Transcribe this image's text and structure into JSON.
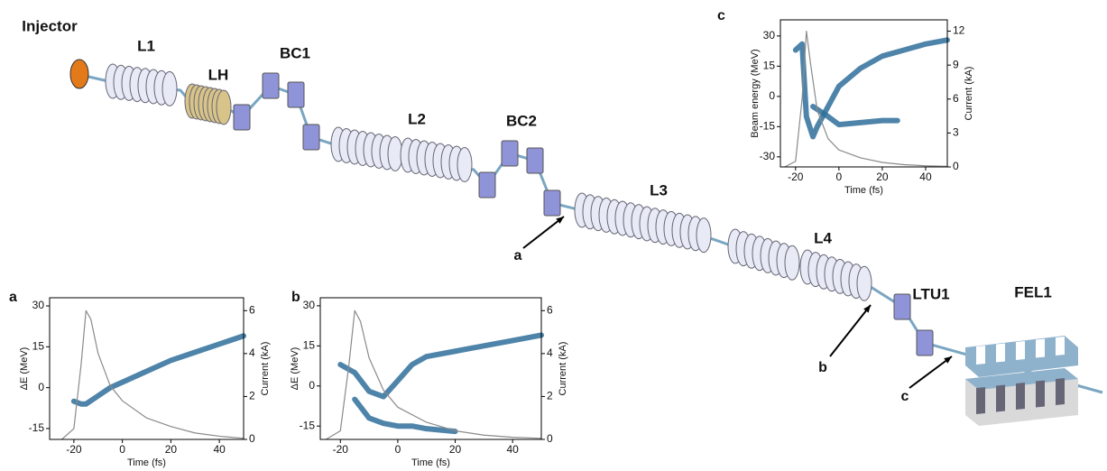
{
  "diagram": {
    "components": [
      "Injector",
      "L1",
      "LH",
      "BC1",
      "L2",
      "BC2",
      "L3",
      "L4",
      "LTU1",
      "FEL1"
    ],
    "arrows": [
      "a",
      "b",
      "c"
    ]
  },
  "chart_data": [
    {
      "type": "line",
      "panel": "a",
      "xlabel": "Time (fs)",
      "ylabel": "ΔE (MeV)",
      "y2label": "Current (kA)",
      "xlim": [
        -30,
        50
      ],
      "xticks": [
        -20,
        0,
        20,
        40
      ],
      "ylim": [
        -19,
        33
      ],
      "yticks": [
        -15,
        0,
        15,
        30
      ],
      "y2lim": [
        0,
        6.6
      ],
      "y2ticks": [
        0,
        2,
        4,
        6
      ],
      "series": [
        {
          "color": "#2f6e9a",
          "x": [
            -20,
            -17,
            -15,
            -10,
            -5,
            0,
            10,
            20,
            30,
            40,
            50
          ],
          "values": [
            -5,
            -6,
            -6,
            -3,
            0,
            2,
            6,
            10,
            13,
            16,
            19
          ]
        },
        {
          "color": "#8a8a8a",
          "axis": "y2",
          "x": [
            -25,
            -20,
            -17,
            -15,
            -13,
            -10,
            -5,
            0,
            10,
            20,
            30,
            40,
            50
          ],
          "values": [
            0,
            0.5,
            3.5,
            6,
            5.6,
            4,
            2.5,
            1.8,
            1,
            0.6,
            0.3,
            0.15,
            0.05
          ]
        }
      ]
    },
    {
      "type": "line",
      "panel": "b",
      "xlabel": "Time (fs)",
      "ylabel": "ΔE (MeV)",
      "y2label": "Current (kA)",
      "xlim": [
        -27,
        50
      ],
      "xticks": [
        -20,
        0,
        20,
        40
      ],
      "ylim": [
        -20,
        33
      ],
      "yticks": [
        -15,
        0,
        15,
        30
      ],
      "y2lim": [
        0,
        6.6
      ],
      "y2ticks": [
        0,
        2,
        4,
        6
      ],
      "series": [
        {
          "color": "#2f6e9a",
          "x": [
            -20,
            -15,
            -10,
            -5,
            0,
            5,
            10,
            20,
            30,
            40,
            50
          ],
          "values": [
            8,
            5,
            -2,
            -4,
            2,
            8,
            11,
            13,
            15,
            17,
            19
          ]
        },
        {
          "color": "#2f6e9a",
          "x": [
            -15,
            -10,
            -5,
            0,
            5,
            10,
            20
          ],
          "values": [
            -5,
            -12,
            -14,
            -15,
            -15,
            -16,
            -17
          ]
        },
        {
          "color": "#8a8a8a",
          "axis": "y2",
          "x": [
            -25,
            -20,
            -17,
            -15,
            -13,
            -10,
            -5,
            0,
            10,
            20,
            30,
            40,
            50
          ],
          "values": [
            0,
            0.4,
            3.5,
            6,
            5.5,
            3.8,
            2.3,
            1.5,
            0.8,
            0.4,
            0.2,
            0.1,
            0.05
          ]
        }
      ]
    },
    {
      "type": "line",
      "panel": "c",
      "xlabel": "Time (fs)",
      "ylabel": "Beam energy (MeV)",
      "y2label": "Current (kA)",
      "xlim": [
        -27,
        50
      ],
      "xticks": [
        -20,
        0,
        20,
        40
      ],
      "ylim": [
        -35,
        38
      ],
      "yticks": [
        -30,
        -15,
        0,
        15,
        30
      ],
      "y2lim": [
        0,
        13
      ],
      "y2ticks": [
        0,
        3,
        6,
        9,
        12
      ],
      "series": [
        {
          "color": "#2f6e9a",
          "x": [
            -20,
            -17,
            -15,
            -12,
            -10,
            -5,
            0,
            10,
            20,
            30,
            40,
            50
          ],
          "values": [
            23,
            26,
            -10,
            -20,
            -15,
            -5,
            5,
            14,
            20,
            23,
            26,
            28
          ]
        },
        {
          "color": "#2f6e9a",
          "x": [
            -12,
            -5,
            0,
            10,
            20,
            27
          ],
          "values": [
            -5,
            -10,
            -14,
            -13,
            -12,
            -12
          ]
        },
        {
          "color": "#8a8a8a",
          "axis": "y2",
          "x": [
            -25,
            -20,
            -17,
            -15,
            -13,
            -10,
            -5,
            0,
            10,
            20,
            30,
            40,
            50
          ],
          "values": [
            0,
            0.5,
            6,
            12,
            9,
            5,
            2.5,
            1.5,
            0.8,
            0.4,
            0.2,
            0.1,
            0.05
          ]
        }
      ]
    }
  ]
}
